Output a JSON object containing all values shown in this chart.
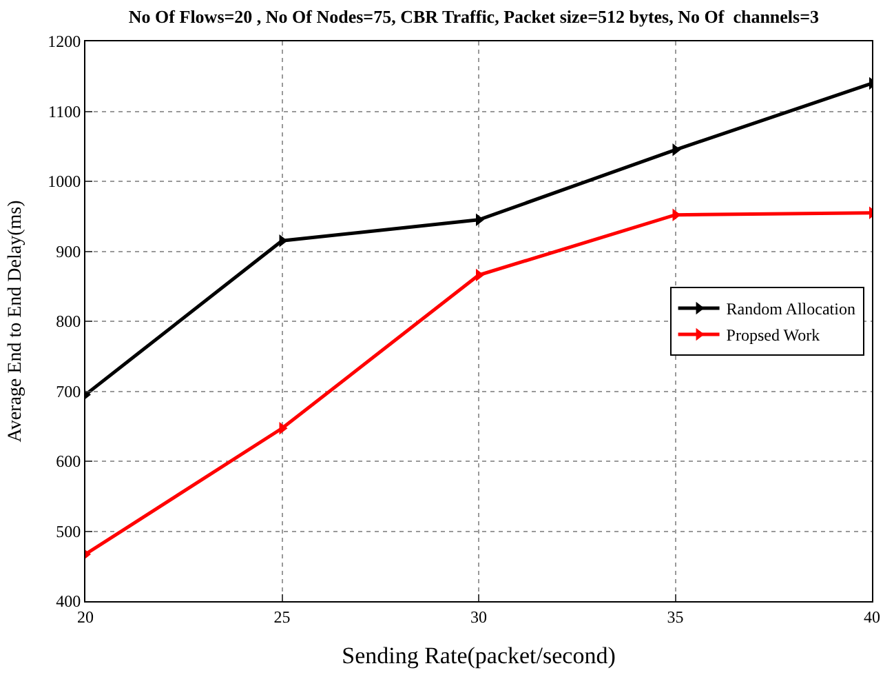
{
  "chart_data": {
    "type": "line",
    "title": "No Of Flows=20 , No Of Nodes=75, CBR Traffic, Packet size=512 bytes, No Of  channels=3",
    "xlabel": "Sending Rate(packet/second)",
    "ylabel": "Average End to End Delay(ms)",
    "x": [
      20,
      25,
      30,
      35,
      40
    ],
    "series": [
      {
        "name": "Random Allocation",
        "color": "#000000",
        "values": [
          695,
          915,
          945,
          1045,
          1140
        ]
      },
      {
        "name": "Propsed Work",
        "color": "#ff0000",
        "values": [
          467,
          647,
          866,
          952,
          955
        ]
      }
    ],
    "xlim": [
      20,
      40
    ],
    "xticks": [
      20,
      25,
      30,
      35,
      40
    ],
    "ylim": [
      400,
      1200
    ],
    "yticks": [
      400,
      500,
      600,
      700,
      800,
      900,
      1000,
      1100,
      1200
    ],
    "grid": true,
    "legend": "right",
    "marker": "triangle",
    "line_style": "solid"
  }
}
